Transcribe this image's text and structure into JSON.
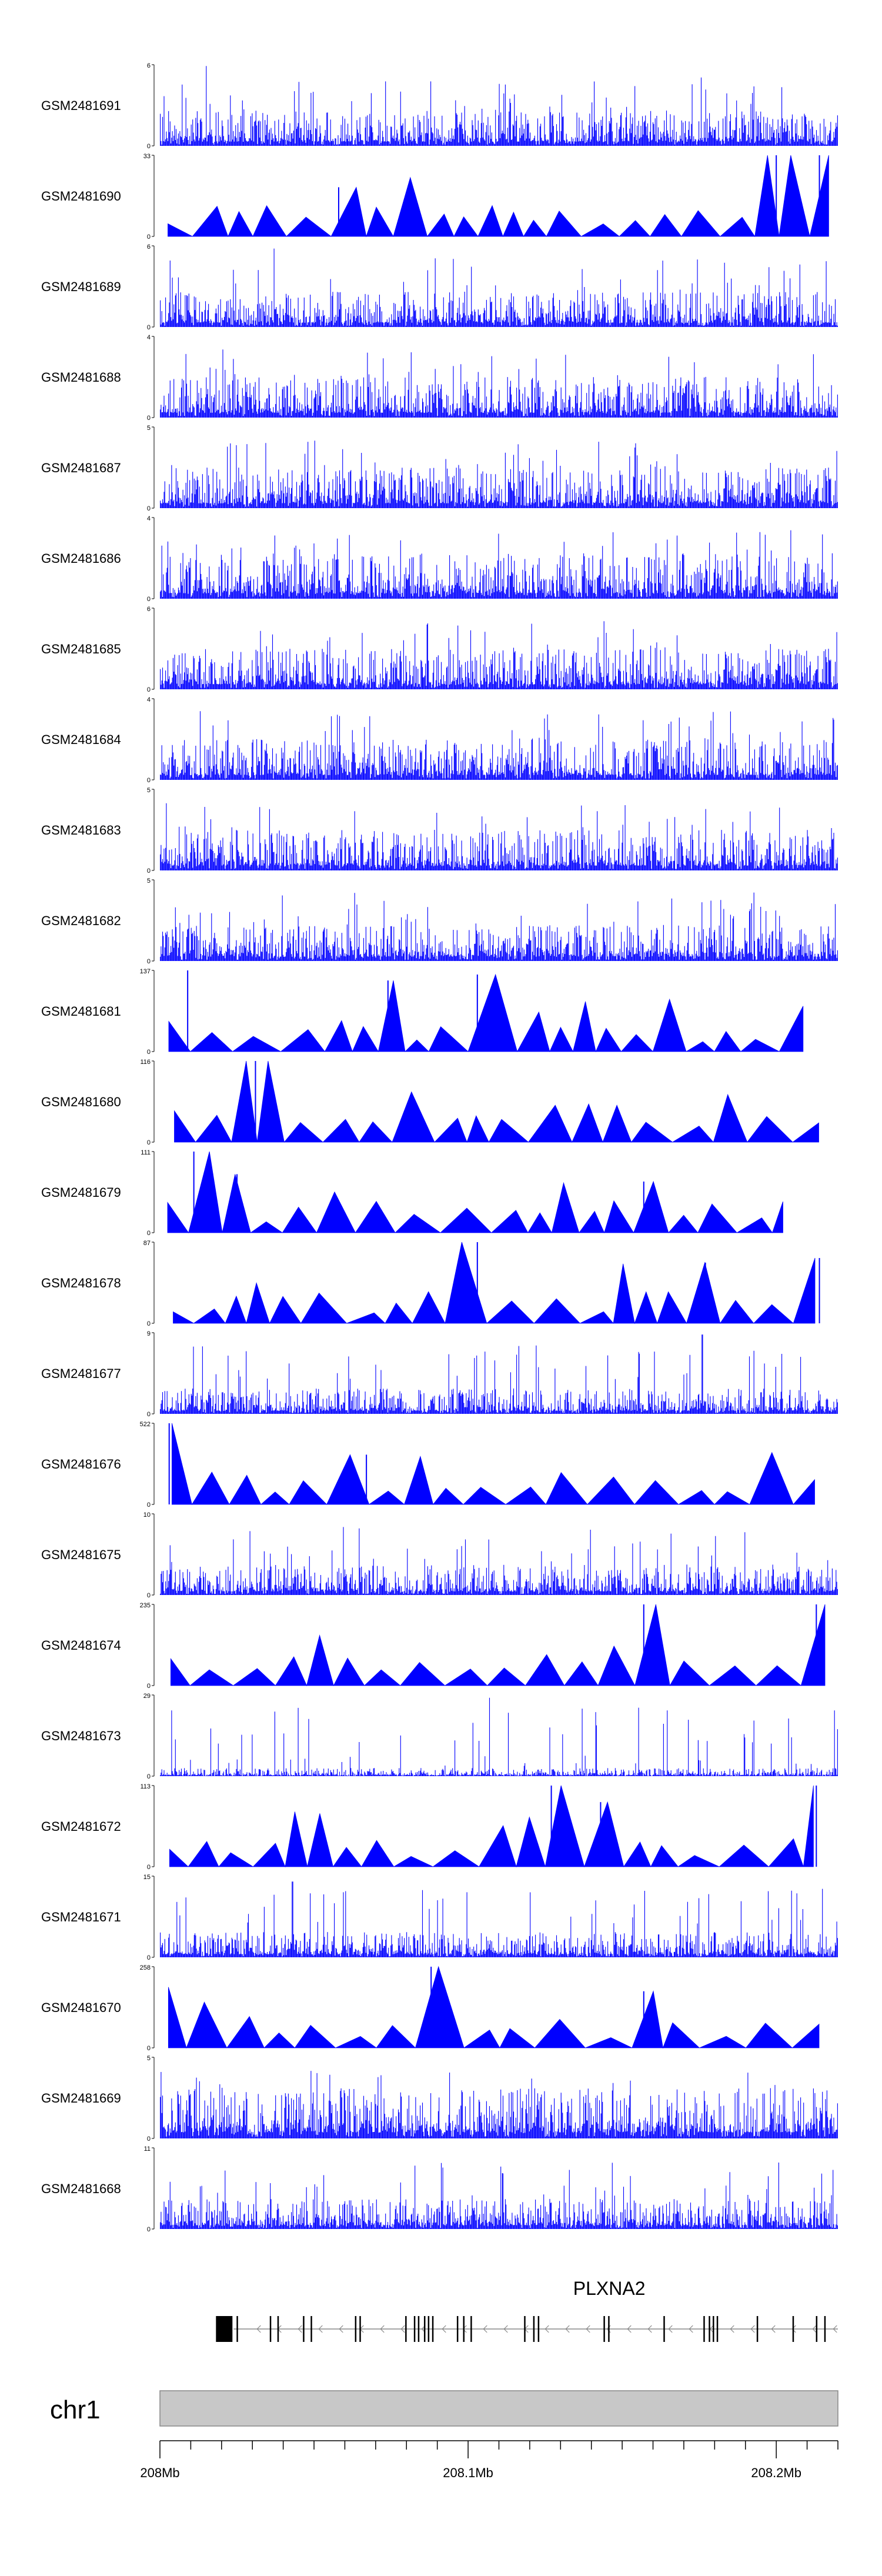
{
  "chart_data": {
    "type": "area",
    "x_unit": "Mb",
    "x_range": [
      208.0,
      208.22
    ],
    "x_ticks": [
      {
        "value": 208.0,
        "label": "208Mb"
      },
      {
        "value": 208.1,
        "label": "208.1Mb"
      },
      {
        "value": 208.2,
        "label": "208.2Mb"
      }
    ],
    "series_color": "#0000ff",
    "tracks": [
      {
        "name": "GSM2481691",
        "ymax": 6,
        "ymin": 0,
        "kind": "dense",
        "seed": 11,
        "base": 0.35,
        "peaks": [
          [
            208.015,
            5.9
          ]
        ]
      },
      {
        "name": "GSM2481690",
        "ymax": 33,
        "ymin": 0,
        "kind": "sparse",
        "seed": 12,
        "peaks": [
          [
            208.058,
            20
          ],
          [
            208.2,
            33
          ],
          [
            208.214,
            33
          ]
        ]
      },
      {
        "name": "GSM2481689",
        "ymax": 6,
        "ymin": 0,
        "kind": "dense",
        "seed": 13,
        "base": 0.35,
        "peaks": [
          [
            208.037,
            5.8
          ]
        ]
      },
      {
        "name": "GSM2481688",
        "ymax": 4,
        "ymin": 0,
        "kind": "dense",
        "seed": 14,
        "base": 0.4,
        "peaks": []
      },
      {
        "name": "GSM2481687",
        "ymax": 5,
        "ymin": 0,
        "kind": "dense",
        "seed": 15,
        "base": 0.4,
        "peaks": []
      },
      {
        "name": "GSM2481686",
        "ymax": 4,
        "ymin": 0,
        "kind": "dense",
        "seed": 16,
        "base": 0.45,
        "peaks": []
      },
      {
        "name": "GSM2481685",
        "ymax": 6,
        "ymin": 0,
        "kind": "dense",
        "seed": 17,
        "base": 0.4,
        "peaks": []
      },
      {
        "name": "GSM2481684",
        "ymax": 4,
        "ymin": 0,
        "kind": "dense",
        "seed": 18,
        "base": 0.4,
        "peaks": []
      },
      {
        "name": "GSM2481683",
        "ymax": 5,
        "ymin": 0,
        "kind": "dense",
        "seed": 19,
        "base": 0.4,
        "peaks": []
      },
      {
        "name": "GSM2481682",
        "ymax": 5,
        "ymin": 0,
        "kind": "dense",
        "seed": 20,
        "base": 0.35,
        "peaks": []
      },
      {
        "name": "GSM2481681",
        "ymax": 137,
        "ymin": 0,
        "kind": "sparse",
        "seed": 21,
        "peaks": [
          [
            208.009,
            137
          ],
          [
            208.074,
            120
          ],
          [
            208.103,
            130
          ]
        ]
      },
      {
        "name": "GSM2481680",
        "ymax": 116,
        "ymin": 0,
        "kind": "sparse",
        "seed": 22,
        "peaks": [
          [
            208.031,
            116
          ]
        ]
      },
      {
        "name": "GSM2481679",
        "ymax": 111,
        "ymin": 0,
        "kind": "sparse",
        "seed": 23,
        "peaks": [
          [
            208.011,
            111
          ],
          [
            208.025,
            80
          ],
          [
            208.157,
            70
          ]
        ]
      },
      {
        "name": "GSM2481678",
        "ymax": 87,
        "ymin": 0,
        "kind": "sparse",
        "seed": 24,
        "peaks": [
          [
            208.103,
            87
          ],
          [
            208.177,
            65
          ],
          [
            208.214,
            70
          ]
        ]
      },
      {
        "name": "GSM2481677",
        "ymax": 9,
        "ymin": 0,
        "kind": "dense",
        "seed": 25,
        "base": 0.25,
        "peaks": [
          [
            208.176,
            8.8
          ]
        ]
      },
      {
        "name": "GSM2481676",
        "ymax": 522,
        "ymin": 0,
        "kind": "sparse",
        "seed": 26,
        "peaks": [
          [
            208.003,
            522
          ],
          [
            208.067,
            320
          ]
        ]
      },
      {
        "name": "GSM2481675",
        "ymax": 10,
        "ymin": 0,
        "kind": "dense",
        "seed": 27,
        "base": 0.3,
        "peaks": []
      },
      {
        "name": "GSM2481674",
        "ymax": 235,
        "ymin": 0,
        "kind": "sparse",
        "seed": 28,
        "peaks": [
          [
            208.157,
            235
          ],
          [
            208.213,
            235
          ]
        ]
      },
      {
        "name": "GSM2481673",
        "ymax": 29,
        "ymin": 0,
        "kind": "dense",
        "seed": 29,
        "base": 0.08,
        "peaks": [
          [
            208.107,
            28
          ]
        ]
      },
      {
        "name": "GSM2481672",
        "ymax": 113,
        "ymin": 0,
        "kind": "sparse",
        "seed": 30,
        "peaks": [
          [
            208.127,
            113
          ],
          [
            208.143,
            90
          ],
          [
            208.213,
            113
          ]
        ]
      },
      {
        "name": "GSM2481671",
        "ymax": 15,
        "ymin": 0,
        "kind": "dense",
        "seed": 31,
        "base": 0.25,
        "peaks": [
          [
            208.043,
            14
          ]
        ]
      },
      {
        "name": "GSM2481670",
        "ymax": 258,
        "ymin": 0,
        "kind": "sparse",
        "seed": 32,
        "peaks": [
          [
            208.088,
            258
          ],
          [
            208.157,
            180
          ]
        ]
      },
      {
        "name": "GSM2481669",
        "ymax": 5,
        "ymin": 0,
        "kind": "dense",
        "seed": 33,
        "base": 0.5,
        "peaks": []
      },
      {
        "name": "GSM2481668",
        "ymax": 11,
        "ymin": 0,
        "kind": "dense",
        "seed": 34,
        "base": 0.3,
        "peaks": []
      }
    ],
    "gene": {
      "name": "PLXNA2",
      "strand": "-",
      "start": 208.022,
      "end": 208.22
    },
    "chromosome": {
      "label": "chr1"
    }
  }
}
